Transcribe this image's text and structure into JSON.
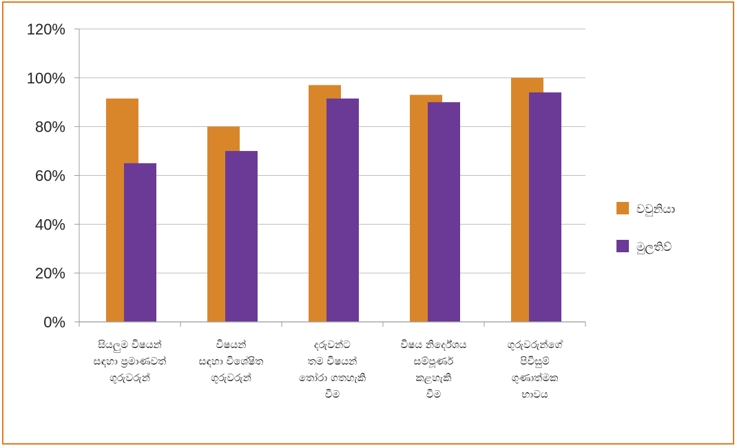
{
  "chart_data": {
    "type": "bar",
    "categories": [
      [
        "සියලුම විෂයන්",
        "සඳහා ප්‍රමාණවත්",
        "ගුරුවරුන්"
      ],
      [
        "විෂයන්",
        "සඳහා විශේෂිත",
        "ගුරුවරුන්"
      ],
      [
        "දරුවන්ට",
        "තම විෂයන්",
        "තෝරා ගතහැකි",
        "වීම"
      ],
      [
        "විෂය නිර්දේශය",
        "සම්පූර්ණ",
        "කළහැකි",
        "වීම"
      ],
      [
        "ගුරුවරුන්ගේ",
        "පිවිසුම්",
        "ගුණාත්මක",
        "භාවය"
      ]
    ],
    "series": [
      {
        "name": "වවුනියා",
        "values": [
          91.5,
          80,
          97,
          93,
          100
        ]
      },
      {
        "name": "මුලතිව්",
        "values": [
          65,
          70,
          91.5,
          90,
          94
        ]
      }
    ],
    "colors": {
      "series0": "#d9862a",
      "series1": "#6a3a96",
      "grid": "#bdbdbd",
      "axis": "#999999",
      "frame": "#e07b22"
    },
    "ylim": [
      0,
      120
    ],
    "ytick_step": 20,
    "ytick_labels": [
      "0%",
      "20%",
      "40%",
      "60%",
      "80%",
      "100%",
      "120%"
    ],
    "grid": true,
    "legend_position": "right"
  }
}
